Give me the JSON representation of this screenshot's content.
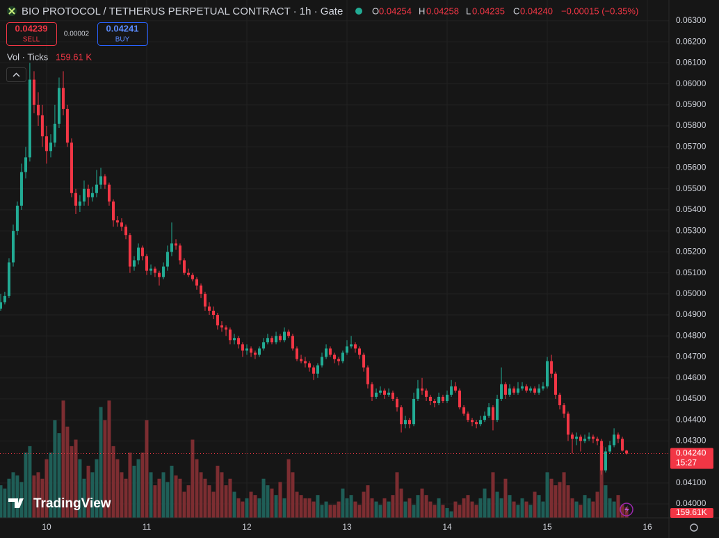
{
  "chart_data": {
    "type": "candlestick",
    "title": "BIO PROTOCOL / TETHERUS PERPETUAL CONTRACT · 1h · Gate",
    "ohlc_names": [
      "O",
      "H",
      "L",
      "C"
    ],
    "ohlc_labels": [
      "0.04254",
      "0.04258",
      "0.04235",
      "0.04240"
    ],
    "change": "−0.00015 (−0.35%)",
    "sell_price": 0.04239,
    "sell_label": "SELL",
    "spread": 2e-05,
    "buy_price": 0.04241,
    "buy_label": "BUY",
    "volume_name": "Vol · Ticks",
    "volume_legend": "159.61 K",
    "volume_tag": "159.61K",
    "price_tag": "0.04240",
    "countdown": "15:27",
    "brand": "TradingView",
    "up_color": "#22ab94",
    "down_color": "#f23645",
    "up_volume_color": "#1f5e57",
    "down_volume_color": "#7c2d31",
    "grid": true,
    "xlim": [
      9.535,
      16.215
    ],
    "xticks": [
      10,
      11,
      12,
      13,
      14,
      15,
      16
    ],
    "ylim": [
      0.03934,
      0.06399
    ],
    "yticks": [
      {
        "value": 0.04,
        "label": "0.04000"
      },
      {
        "value": 0.041,
        "label": "0.04100"
      },
      {
        "value": 0.043,
        "label": "0.04300"
      },
      {
        "value": 0.044,
        "label": "0.04400"
      },
      {
        "value": 0.045,
        "label": "0.04500"
      },
      {
        "value": 0.046,
        "label": "0.04600"
      },
      {
        "value": 0.047,
        "label": "0.04700"
      },
      {
        "value": 0.048,
        "label": "0.04800"
      },
      {
        "value": 0.049,
        "label": "0.04900"
      },
      {
        "value": 0.05,
        "label": "0.05000"
      },
      {
        "value": 0.051,
        "label": "0.05100"
      },
      {
        "value": 0.052,
        "label": "0.05200"
      },
      {
        "value": 0.053,
        "label": "0.05300"
      },
      {
        "value": 0.054,
        "label": "0.05400"
      },
      {
        "value": 0.055,
        "label": "0.05500"
      },
      {
        "value": 0.056,
        "label": "0.05600"
      },
      {
        "value": 0.057,
        "label": "0.05700"
      },
      {
        "value": 0.058,
        "label": "0.05800"
      },
      {
        "value": 0.059,
        "label": "0.05900"
      },
      {
        "value": 0.06,
        "label": "0.06000"
      },
      {
        "value": 0.061,
        "label": "0.06100"
      },
      {
        "value": 0.062,
        "label": "0.06200"
      },
      {
        "value": 0.063,
        "label": "0.06300"
      }
    ],
    "volume_ylim": [
      0,
      2400000
    ],
    "candles": [
      [
        9.542,
        0.0493,
        0.05,
        0.0492,
        0.0496
      ],
      [
        9.583,
        0.0496,
        0.0501,
        0.0495,
        0.0499
      ],
      [
        9.625,
        0.0499,
        0.0517,
        0.0498,
        0.0515
      ],
      [
        9.667,
        0.0515,
        0.0533,
        0.0513,
        0.053
      ],
      [
        9.708,
        0.053,
        0.0544,
        0.0528,
        0.0542
      ],
      [
        9.75,
        0.0542,
        0.0562,
        0.054,
        0.0558
      ],
      [
        9.792,
        0.0558,
        0.057,
        0.0555,
        0.0565
      ],
      [
        9.833,
        0.0565,
        0.061,
        0.0563,
        0.0602
      ],
      [
        9.875,
        0.0602,
        0.0606,
        0.0586,
        0.059
      ],
      [
        9.917,
        0.059,
        0.0596,
        0.058,
        0.0585
      ],
      [
        9.958,
        0.0585,
        0.059,
        0.057,
        0.0575
      ],
      [
        10,
        0.0575,
        0.058,
        0.0562,
        0.0568
      ],
      [
        10.042,
        0.0568,
        0.0576,
        0.0565,
        0.0572
      ],
      [
        10.083,
        0.0572,
        0.059,
        0.057,
        0.0581
      ],
      [
        10.125,
        0.0581,
        0.0603,
        0.0579,
        0.0598
      ],
      [
        10.167,
        0.0598,
        0.0606,
        0.0585,
        0.0588
      ],
      [
        10.208,
        0.0588,
        0.059,
        0.057,
        0.0572
      ],
      [
        10.25,
        0.0572,
        0.0574,
        0.0546,
        0.0548
      ],
      [
        10.292,
        0.0548,
        0.055,
        0.0538,
        0.0542
      ],
      [
        10.333,
        0.0542,
        0.0547,
        0.0539,
        0.0544
      ],
      [
        10.375,
        0.0544,
        0.0554,
        0.0542,
        0.055
      ],
      [
        10.417,
        0.055,
        0.0552,
        0.0542,
        0.0546
      ],
      [
        10.458,
        0.0546,
        0.0551,
        0.0544,
        0.0548
      ],
      [
        10.5,
        0.0548,
        0.0559,
        0.0546,
        0.0552
      ],
      [
        10.542,
        0.0552,
        0.056,
        0.055,
        0.0556
      ],
      [
        10.583,
        0.0556,
        0.0557,
        0.055,
        0.0552
      ],
      [
        10.625,
        0.0552,
        0.0553,
        0.0542,
        0.0544
      ],
      [
        10.667,
        0.0544,
        0.0545,
        0.0532,
        0.0535
      ],
      [
        10.708,
        0.0535,
        0.0537,
        0.0532,
        0.0534
      ],
      [
        10.75,
        0.0534,
        0.0536,
        0.053,
        0.0532
      ],
      [
        10.792,
        0.0532,
        0.0533,
        0.0526,
        0.0528
      ],
      [
        10.833,
        0.0528,
        0.0529,
        0.051,
        0.0513
      ],
      [
        10.875,
        0.0513,
        0.0518,
        0.0511,
        0.0516
      ],
      [
        10.917,
        0.0516,
        0.0524,
        0.0514,
        0.0522
      ],
      [
        10.958,
        0.0522,
        0.0523,
        0.0516,
        0.0518
      ],
      [
        11,
        0.0518,
        0.0519,
        0.0509,
        0.0511
      ],
      [
        11.042,
        0.0511,
        0.0514,
        0.0509,
        0.0512
      ],
      [
        11.083,
        0.0512,
        0.0513,
        0.0508,
        0.051
      ],
      [
        11.125,
        0.051,
        0.0511,
        0.0504,
        0.0508
      ],
      [
        11.167,
        0.0508,
        0.0515,
        0.0507,
        0.0513
      ],
      [
        11.208,
        0.0513,
        0.0523,
        0.0511,
        0.052
      ],
      [
        11.25,
        0.052,
        0.0534,
        0.0518,
        0.0524
      ],
      [
        11.292,
        0.0524,
        0.0526,
        0.0521,
        0.0523
      ],
      [
        11.333,
        0.0523,
        0.0524,
        0.0514,
        0.0516
      ],
      [
        11.375,
        0.0516,
        0.0517,
        0.0509,
        0.051
      ],
      [
        11.417,
        0.051,
        0.0512,
        0.0508,
        0.0509
      ],
      [
        11.458,
        0.0509,
        0.051,
        0.0506,
        0.0507
      ],
      [
        11.5,
        0.0507,
        0.0508,
        0.0502,
        0.0504
      ],
      [
        11.542,
        0.0504,
        0.0505,
        0.0498,
        0.05
      ],
      [
        11.583,
        0.05,
        0.0501,
        0.0492,
        0.0494
      ],
      [
        11.625,
        0.0494,
        0.0496,
        0.049,
        0.0492
      ],
      [
        11.667,
        0.0492,
        0.0494,
        0.0488,
        0.049
      ],
      [
        11.708,
        0.049,
        0.0491,
        0.0483,
        0.0485
      ],
      [
        11.75,
        0.0485,
        0.0487,
        0.0482,
        0.0484
      ],
      [
        11.792,
        0.0484,
        0.0485,
        0.048,
        0.0483
      ],
      [
        11.833,
        0.0483,
        0.0484,
        0.0476,
        0.0478
      ],
      [
        11.875,
        0.0478,
        0.0481,
        0.0476,
        0.0479
      ],
      [
        11.917,
        0.0479,
        0.048,
        0.0474,
        0.0476
      ],
      [
        11.958,
        0.0476,
        0.0477,
        0.047,
        0.0473
      ],
      [
        12,
        0.0473,
        0.0476,
        0.0471,
        0.0474
      ],
      [
        12.042,
        0.0474,
        0.0475,
        0.047,
        0.0472
      ],
      [
        12.083,
        0.0472,
        0.0473,
        0.0469,
        0.0471
      ],
      [
        12.125,
        0.0471,
        0.0475,
        0.047,
        0.0474
      ],
      [
        12.167,
        0.0474,
        0.0479,
        0.0473,
        0.0477
      ],
      [
        12.208,
        0.0477,
        0.0481,
        0.0476,
        0.0479
      ],
      [
        12.25,
        0.0479,
        0.048,
        0.0476,
        0.0477
      ],
      [
        12.292,
        0.0477,
        0.0482,
        0.0476,
        0.048
      ],
      [
        12.333,
        0.048,
        0.0481,
        0.0477,
        0.0478
      ],
      [
        12.375,
        0.0478,
        0.0484,
        0.0477,
        0.0482
      ],
      [
        12.417,
        0.0482,
        0.0483,
        0.0479,
        0.048
      ],
      [
        12.458,
        0.048,
        0.0481,
        0.0473,
        0.0474
      ],
      [
        12.5,
        0.0474,
        0.0475,
        0.0468,
        0.0469
      ],
      [
        12.542,
        0.0469,
        0.0471,
        0.0467,
        0.0468
      ],
      [
        12.583,
        0.0468,
        0.047,
        0.0465,
        0.0467
      ],
      [
        12.625,
        0.0467,
        0.0468,
        0.0463,
        0.0465
      ],
      [
        12.667,
        0.0465,
        0.0466,
        0.0459,
        0.0462
      ],
      [
        12.708,
        0.0462,
        0.0467,
        0.046,
        0.0466
      ],
      [
        12.75,
        0.0466,
        0.0472,
        0.0465,
        0.047
      ],
      [
        12.792,
        0.047,
        0.0476,
        0.0469,
        0.0474
      ],
      [
        12.833,
        0.0474,
        0.0475,
        0.047,
        0.0471
      ],
      [
        12.875,
        0.0471,
        0.0472,
        0.0467,
        0.0469
      ],
      [
        12.917,
        0.0469,
        0.047,
        0.0466,
        0.0468
      ],
      [
        12.958,
        0.0468,
        0.0473,
        0.0467,
        0.0472
      ],
      [
        13,
        0.0472,
        0.0478,
        0.0471,
        0.0475
      ],
      [
        13.042,
        0.0475,
        0.048,
        0.0474,
        0.0476
      ],
      [
        13.083,
        0.0476,
        0.0477,
        0.0472,
        0.0474
      ],
      [
        13.125,
        0.0474,
        0.0475,
        0.0469,
        0.0471
      ],
      [
        13.167,
        0.0471,
        0.0472,
        0.0463,
        0.0465
      ],
      [
        13.208,
        0.0465,
        0.0466,
        0.0455,
        0.0457
      ],
      [
        13.25,
        0.0457,
        0.0458,
        0.0449,
        0.0451
      ],
      [
        13.292,
        0.0451,
        0.0455,
        0.045,
        0.0453
      ],
      [
        13.333,
        0.0453,
        0.0456,
        0.0452,
        0.0454
      ],
      [
        13.375,
        0.0454,
        0.0455,
        0.045,
        0.0452
      ],
      [
        13.417,
        0.0452,
        0.0455,
        0.0451,
        0.0453
      ],
      [
        13.458,
        0.0453,
        0.0454,
        0.0449,
        0.045
      ],
      [
        13.5,
        0.045,
        0.0451,
        0.0444,
        0.0446
      ],
      [
        13.542,
        0.0446,
        0.0447,
        0.0434,
        0.0438
      ],
      [
        13.583,
        0.0438,
        0.0442,
        0.0436,
        0.044
      ],
      [
        13.625,
        0.044,
        0.0441,
        0.0436,
        0.0438
      ],
      [
        13.667,
        0.0438,
        0.0453,
        0.0437,
        0.045
      ],
      [
        13.708,
        0.045,
        0.0459,
        0.0449,
        0.0455
      ],
      [
        13.75,
        0.0455,
        0.046,
        0.0452,
        0.0454
      ],
      [
        13.792,
        0.0454,
        0.0455,
        0.0449,
        0.0451
      ],
      [
        13.833,
        0.0451,
        0.0452,
        0.0447,
        0.0449
      ],
      [
        13.875,
        0.0449,
        0.045,
        0.0446,
        0.0448
      ],
      [
        13.917,
        0.0448,
        0.0453,
        0.0447,
        0.0451
      ],
      [
        13.958,
        0.0451,
        0.0452,
        0.0448,
        0.0449
      ],
      [
        14,
        0.0449,
        0.0454,
        0.0448,
        0.0452
      ],
      [
        14.042,
        0.0452,
        0.0459,
        0.0451,
        0.0456
      ],
      [
        14.083,
        0.0456,
        0.0458,
        0.0453,
        0.0454
      ],
      [
        14.125,
        0.0454,
        0.0455,
        0.0445,
        0.0446
      ],
      [
        14.167,
        0.0446,
        0.0447,
        0.0442,
        0.0443
      ],
      [
        14.208,
        0.0443,
        0.0444,
        0.0439,
        0.044
      ],
      [
        14.25,
        0.044,
        0.0441,
        0.0437,
        0.0439
      ],
      [
        14.292,
        0.0439,
        0.044,
        0.0436,
        0.0438
      ],
      [
        14.333,
        0.0438,
        0.0442,
        0.0437,
        0.044
      ],
      [
        14.375,
        0.044,
        0.0444,
        0.0439,
        0.0442
      ],
      [
        14.417,
        0.0442,
        0.0448,
        0.0441,
        0.0446
      ],
      [
        14.458,
        0.0446,
        0.0447,
        0.0435,
        0.044
      ],
      [
        14.5,
        0.044,
        0.0452,
        0.0439,
        0.045
      ],
      [
        14.542,
        0.045,
        0.0465,
        0.0449,
        0.0457
      ],
      [
        14.583,
        0.0457,
        0.0458,
        0.045,
        0.0452
      ],
      [
        14.625,
        0.0452,
        0.0457,
        0.0451,
        0.0455
      ],
      [
        14.667,
        0.0455,
        0.0456,
        0.0452,
        0.0453
      ],
      [
        14.708,
        0.0453,
        0.0458,
        0.0452,
        0.0455
      ],
      [
        14.75,
        0.0455,
        0.0458,
        0.0454,
        0.0456
      ],
      [
        14.792,
        0.0456,
        0.0457,
        0.0453,
        0.0454
      ],
      [
        14.833,
        0.0454,
        0.0456,
        0.0453,
        0.0455
      ],
      [
        14.875,
        0.0455,
        0.0456,
        0.0452,
        0.0453
      ],
      [
        14.917,
        0.0453,
        0.0457,
        0.0452,
        0.0455
      ],
      [
        14.958,
        0.0455,
        0.0458,
        0.0454,
        0.0456
      ],
      [
        15,
        0.0456,
        0.047,
        0.0455,
        0.0468
      ],
      [
        15.042,
        0.0468,
        0.0471,
        0.046,
        0.0462
      ],
      [
        15.083,
        0.0462,
        0.0463,
        0.045,
        0.0452
      ],
      [
        15.125,
        0.0452,
        0.0453,
        0.0445,
        0.0447
      ],
      [
        15.167,
        0.0447,
        0.0448,
        0.0441,
        0.0443
      ],
      [
        15.208,
        0.0443,
        0.0444,
        0.043,
        0.0433
      ],
      [
        15.25,
        0.0433,
        0.0434,
        0.0424,
        0.0431
      ],
      [
        15.292,
        0.0431,
        0.0434,
        0.0428,
        0.0432
      ],
      [
        15.333,
        0.0432,
        0.0433,
        0.0425,
        0.043
      ],
      [
        15.375,
        0.043,
        0.0433,
        0.0429,
        0.0431
      ],
      [
        15.417,
        0.0431,
        0.0434,
        0.043,
        0.0432
      ],
      [
        15.458,
        0.0432,
        0.0433,
        0.0429,
        0.0431
      ],
      [
        15.5,
        0.0431,
        0.0432,
        0.0428,
        0.043
      ],
      [
        15.542,
        0.043,
        0.0431,
        0.0414,
        0.0416
      ],
      [
        15.583,
        0.0416,
        0.0427,
        0.0415,
        0.0425
      ],
      [
        15.625,
        0.0425,
        0.043,
        0.0424,
        0.0428
      ],
      [
        15.667,
        0.0428,
        0.0436,
        0.0427,
        0.0433
      ],
      [
        15.708,
        0.0433,
        0.0434,
        0.0429,
        0.0431
      ],
      [
        15.75,
        0.0431,
        0.0432,
        0.0425,
        0.04254
      ],
      [
        15.792,
        0.04254,
        0.04258,
        0.04235,
        0.0424
      ]
    ],
    "volume": [
      500000,
      450000,
      600000,
      700000,
      650000,
      550000,
      1000000,
      1100000,
      650000,
      700000,
      600000,
      900000,
      1000000,
      1500000,
      1300000,
      1800000,
      1400000,
      1100000,
      1200000,
      900000,
      600000,
      800000,
      700000,
      900000,
      1700000,
      1500000,
      1800000,
      1100000,
      900000,
      700000,
      600000,
      1000000,
      800000,
      900000,
      1000000,
      1500000,
      700000,
      500000,
      600000,
      700000,
      550000,
      800000,
      650000,
      600000,
      400000,
      500000,
      1200000,
      900000,
      700000,
      600000,
      500000,
      400000,
      800000,
      700000,
      500000,
      600000,
      400000,
      300000,
      250000,
      300000,
      400000,
      350000,
      300000,
      600000,
      500000,
      450000,
      350000,
      550000,
      300000,
      900000,
      700000,
      400000,
      350000,
      300000,
      300000,
      250000,
      350000,
      200000,
      250000,
      200000,
      200000,
      250000,
      450000,
      300000,
      350000,
      250000,
      200000,
      400000,
      500000,
      300000,
      250000,
      200000,
      300000,
      250000,
      350000,
      700000,
      450000,
      250000,
      300000,
      200000,
      350000,
      450000,
      350000,
      250000,
      200000,
      300000,
      200000,
      150000,
      100000,
      250000,
      200000,
      300000,
      350000,
      250000,
      200000,
      300000,
      450000,
      300000,
      700000,
      400000,
      300000,
      600000,
      350000,
      250000,
      200000,
      300000,
      250000,
      200000,
      400000,
      350000,
      250000,
      700000,
      600000,
      500000,
      550000,
      700000,
      500000,
      300000,
      250000,
      200000,
      350000,
      300000,
      250000,
      400000,
      1100000,
      500000,
      300000,
      250000,
      350000,
      200000,
      159610
    ]
  }
}
